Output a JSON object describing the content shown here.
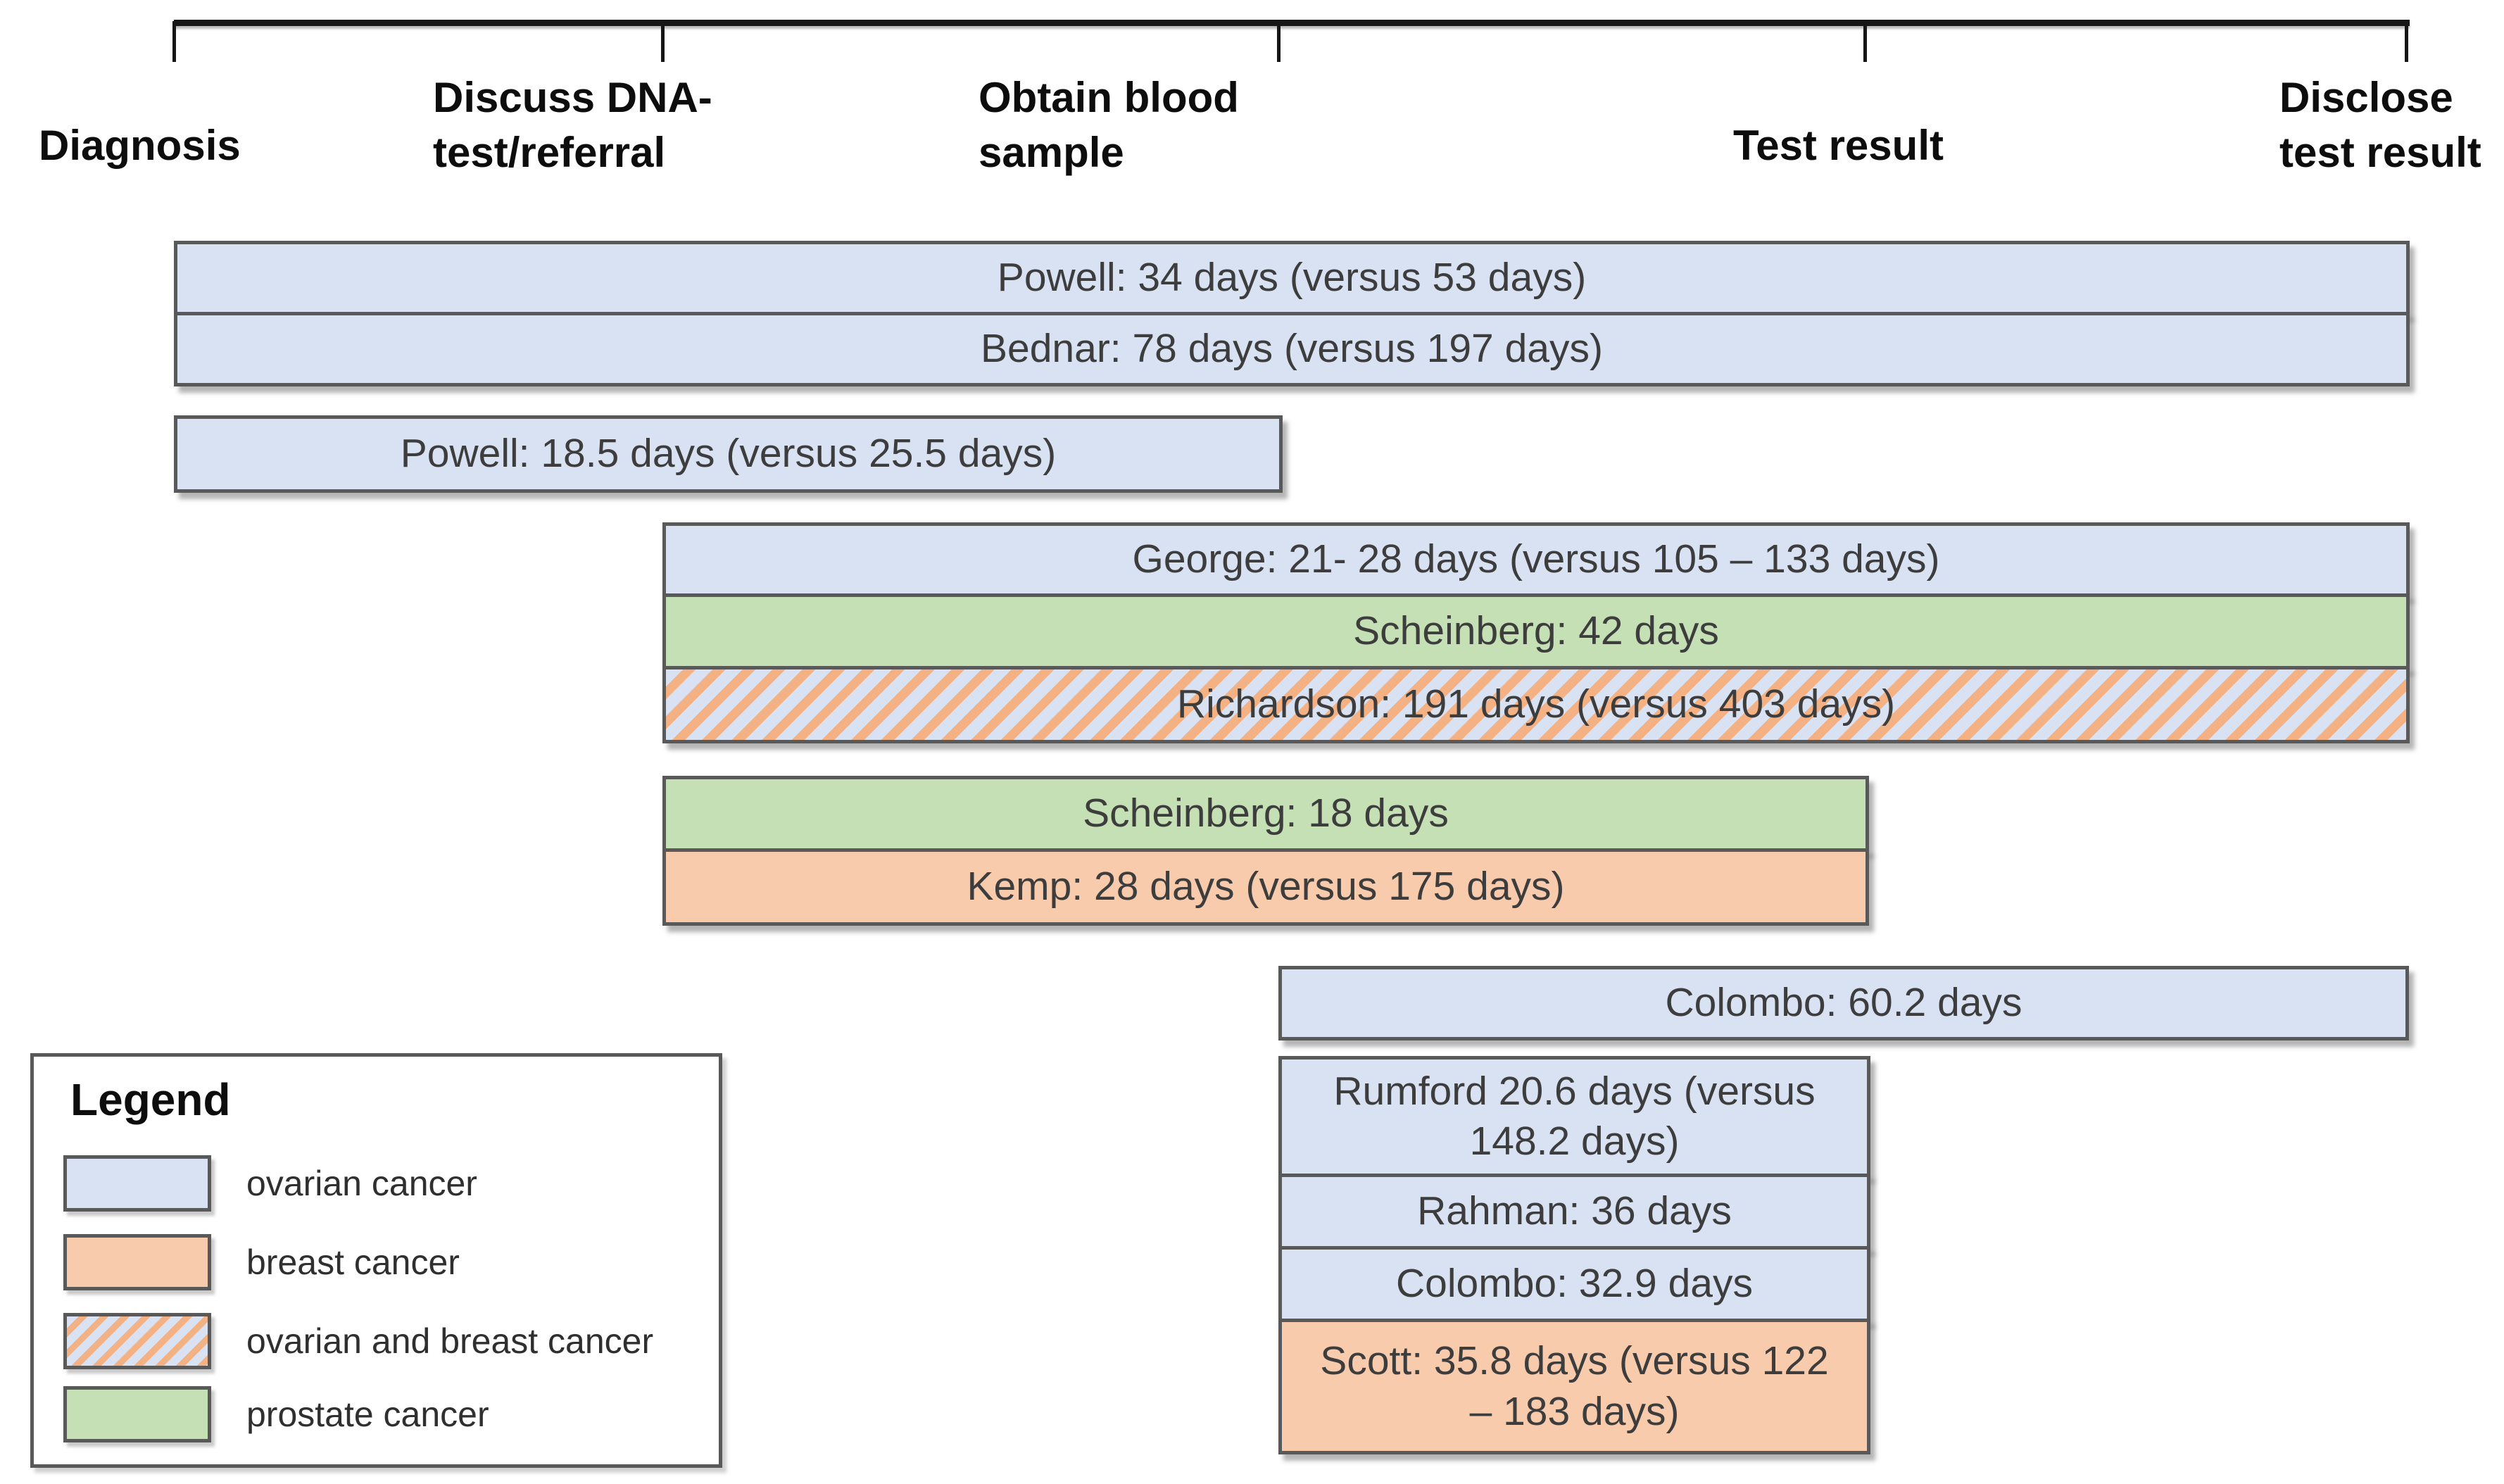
{
  "chart_data": {
    "type": "bar",
    "variant": "gantt-timeline",
    "title": "",
    "stages": [
      "Diagnosis",
      "Discuss DNA-test/referral",
      "Obtain blood sample",
      "Test result",
      "Disclose test result"
    ],
    "stage_labels_display": [
      "Diagnosis",
      "Discuss DNA-\ntest/referral",
      "Obtain blood\nsample",
      "Test result",
      "Disclose\ntest result"
    ],
    "bars": [
      {
        "study": "Powell",
        "label": "Powell: 34 days (versus 53 days)",
        "days": 34,
        "versus_days": 53,
        "cancer": "ovarian cancer",
        "from": "Diagnosis",
        "to": "Disclose test result"
      },
      {
        "study": "Bednar",
        "label": "Bednar: 78 days (versus 197 days)",
        "days": 78,
        "versus_days": 197,
        "cancer": "ovarian cancer",
        "from": "Diagnosis",
        "to": "Disclose test result"
      },
      {
        "study": "Powell",
        "label": "Powell: 18.5 days (versus 25.5 days)",
        "days": 18.5,
        "versus_days": 25.5,
        "cancer": "ovarian cancer",
        "from": "Diagnosis",
        "to": "Obtain blood sample"
      },
      {
        "study": "George",
        "label": "George: 21- 28 days (versus 105 – 133 days)",
        "days": "21-28",
        "versus_days": "105-133",
        "cancer": "ovarian cancer",
        "from": "Discuss DNA-test/referral",
        "to": "Disclose test result"
      },
      {
        "study": "Scheinberg",
        "label": "Scheinberg: 42 days",
        "days": 42,
        "versus_days": null,
        "cancer": "prostate cancer",
        "from": "Discuss DNA-test/referral",
        "to": "Disclose test result"
      },
      {
        "study": "Richardson",
        "label": "Richardson: 191 days (versus 403 days)",
        "days": 191,
        "versus_days": 403,
        "cancer": "ovarian and breast cancer",
        "from": "Discuss DNA-test/referral",
        "to": "Disclose test result"
      },
      {
        "study": "Scheinberg",
        "label": "Scheinberg: 18 days",
        "days": 18,
        "versus_days": null,
        "cancer": "prostate cancer",
        "from": "Discuss DNA-test/referral",
        "to": "Test result"
      },
      {
        "study": "Kemp",
        "label": "Kemp: 28 days (versus 175 days)",
        "days": 28,
        "versus_days": 175,
        "cancer": "breast cancer",
        "from": "Discuss DNA-test/referral",
        "to": "Test result"
      },
      {
        "study": "Colombo",
        "label": "Colombo: 60.2 days",
        "days": 60.2,
        "versus_days": null,
        "cancer": "ovarian cancer",
        "from": "Obtain blood sample",
        "to": "Disclose test result"
      },
      {
        "study": "Rumford",
        "label": "Rumford 20.6 days (versus\n148.2 days)",
        "days": 20.6,
        "versus_days": 148.2,
        "cancer": "ovarian cancer",
        "from": "Obtain blood sample",
        "to": "Test result"
      },
      {
        "study": "Rahman",
        "label": "Rahman: 36 days",
        "days": 36,
        "versus_days": null,
        "cancer": "ovarian cancer",
        "from": "Obtain blood sample",
        "to": "Test result"
      },
      {
        "study": "Colombo",
        "label": "Colombo: 32.9 days",
        "days": 32.9,
        "versus_days": null,
        "cancer": "ovarian cancer",
        "from": "Obtain blood sample",
        "to": "Test result"
      },
      {
        "study": "Scott",
        "label": "Scott: 35.8 days (versus 122\n– 183 days)",
        "days": 35.8,
        "versus_days": "122-183",
        "cancer": "breast cancer",
        "from": "Obtain blood sample",
        "to": "Test result"
      }
    ],
    "legend": {
      "title": "Legend",
      "position": "bottom-left",
      "items": [
        {
          "label": "ovarian cancer",
          "color": "#d9e2f3",
          "pattern": "solid"
        },
        {
          "label": "breast cancer",
          "color": "#f8cbad",
          "pattern": "solid"
        },
        {
          "label": "ovarian and breast cancer",
          "color": "#d9e2f3",
          "stripe_color": "#f4b183",
          "pattern": "diagonal-stripes"
        },
        {
          "label": "prostate cancer",
          "color": "#c5e0b4",
          "pattern": "solid"
        }
      ]
    },
    "colors": {
      "ovarian": "#d9e2f3",
      "breast": "#f8cbad",
      "prostate": "#c5e0b4",
      "stripe": "#f4b183",
      "bar_border": "#595959",
      "axis": "#161616",
      "text": "#3d3d3d"
    },
    "axis": {
      "orientation": "top",
      "tick_count": 5,
      "grid": false
    }
  }
}
